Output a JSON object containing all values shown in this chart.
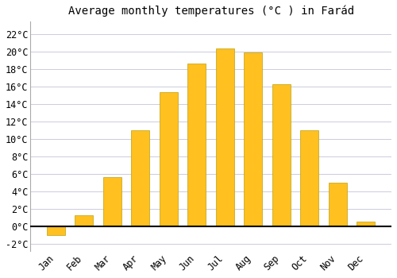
{
  "title": "Average monthly temperatures (°C ) in Farád",
  "months": [
    "Jan",
    "Feb",
    "Mar",
    "Apr",
    "May",
    "Jun",
    "Jul",
    "Aug",
    "Sep",
    "Oct",
    "Nov",
    "Dec"
  ],
  "values": [
    -1.0,
    1.3,
    5.7,
    11.0,
    15.4,
    18.7,
    20.4,
    19.9,
    16.3,
    11.0,
    5.0,
    0.6
  ],
  "bar_color": "#FFC020",
  "bar_edge_color": "#BBA010",
  "background_color": "#FFFFFF",
  "grid_color": "#CCCCDD",
  "yticks": [
    -2,
    0,
    2,
    4,
    6,
    8,
    10,
    12,
    14,
    16,
    18,
    20,
    22
  ],
  "ylim": [
    -2.8,
    23.5
  ],
  "title_fontsize": 10,
  "tick_fontsize": 8.5,
  "font_family": "monospace",
  "bar_width": 0.65
}
